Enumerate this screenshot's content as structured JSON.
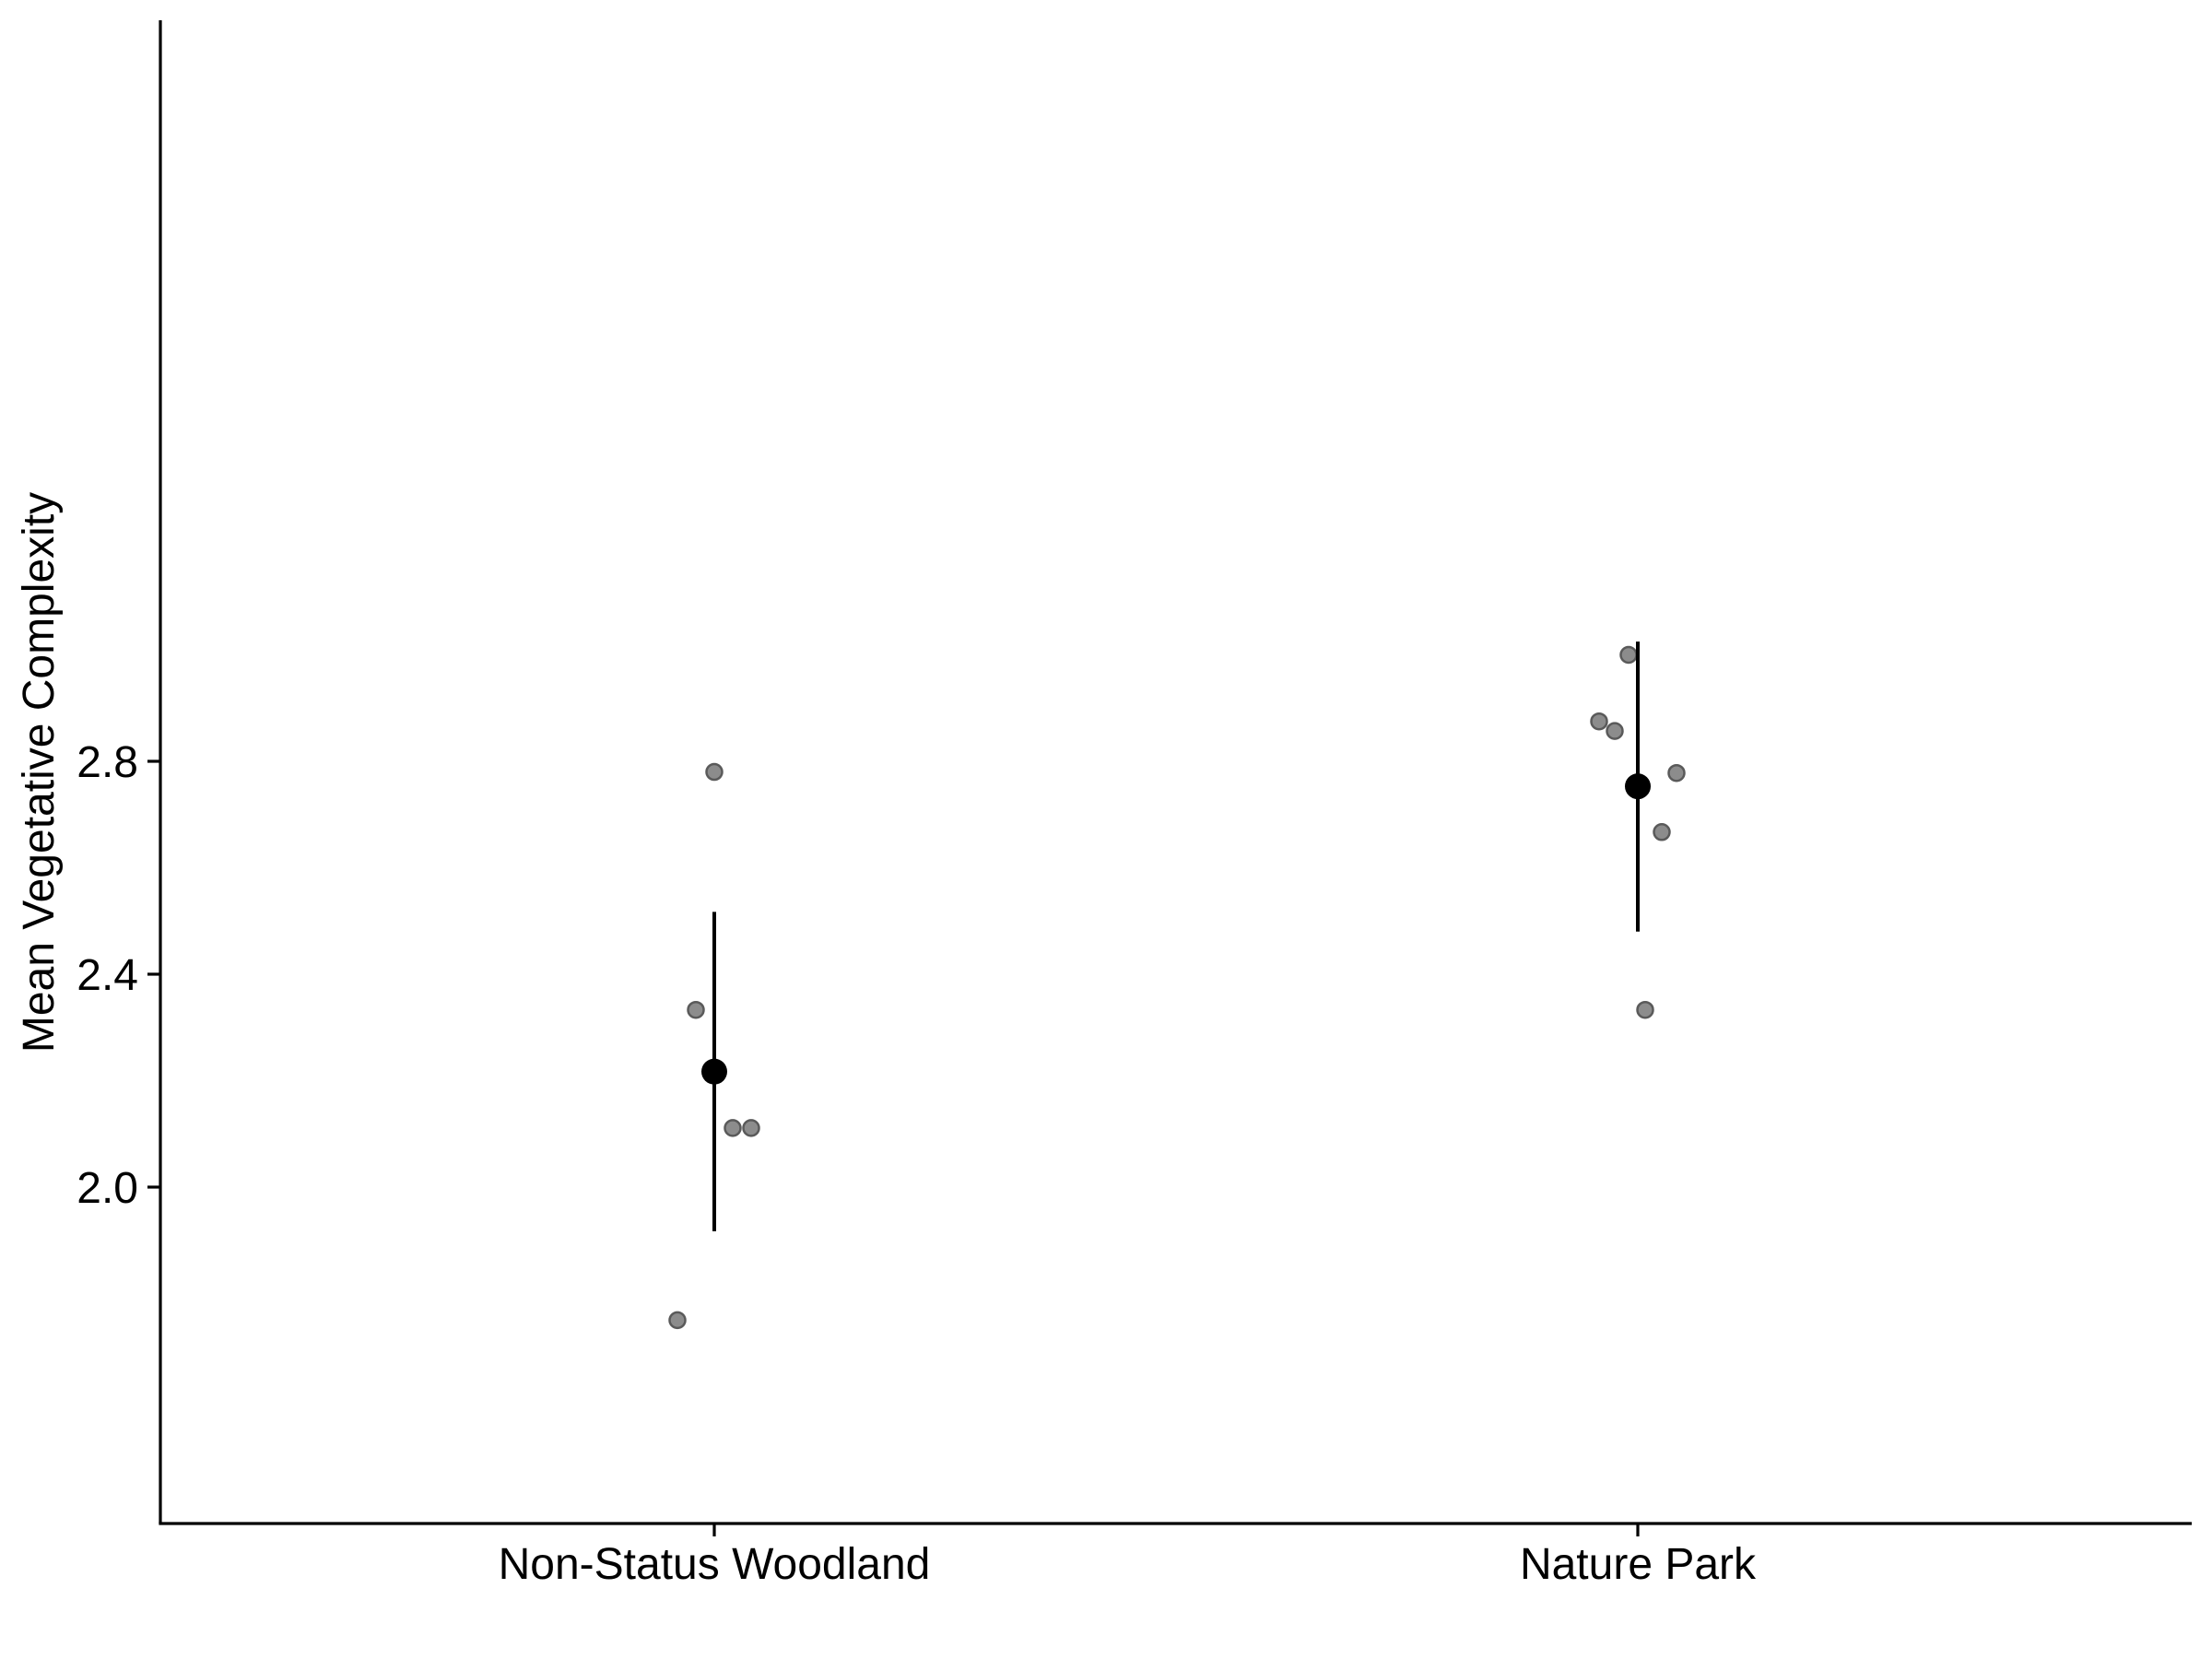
{
  "chart_data": {
    "type": "scatter",
    "title": "",
    "xlabel": "",
    "ylabel": "Mean Vegetative Complexity",
    "categories": [
      "Non-Status Woodland",
      "Nature Park"
    ],
    "ylim": [
      1.7,
      3.1
    ],
    "yticks": [
      2.0,
      2.4,
      2.8
    ],
    "ytick_labels": [
      "2.0",
      "2.4",
      "2.8"
    ],
    "grid": false,
    "legend": "none",
    "raw_points": [
      {
        "category": "Non-Status Woodland",
        "values": [
          2.78,
          2.333,
          2.111,
          2.111,
          1.75
        ]
      },
      {
        "category": "Nature Park",
        "values": [
          3.0,
          2.875,
          2.857,
          2.778,
          2.667,
          2.333
        ]
      }
    ],
    "summary": [
      {
        "category": "Non-Status Woodland",
        "mean": 2.217,
        "lower": 1.917,
        "upper": 2.517
      },
      {
        "category": "Nature Park",
        "mean": 2.753,
        "lower": 2.48,
        "upper": 3.025
      }
    ],
    "colors": {
      "raw_point": "#8c8c8c",
      "mean_point": "#000000",
      "axis": "#000000"
    }
  }
}
